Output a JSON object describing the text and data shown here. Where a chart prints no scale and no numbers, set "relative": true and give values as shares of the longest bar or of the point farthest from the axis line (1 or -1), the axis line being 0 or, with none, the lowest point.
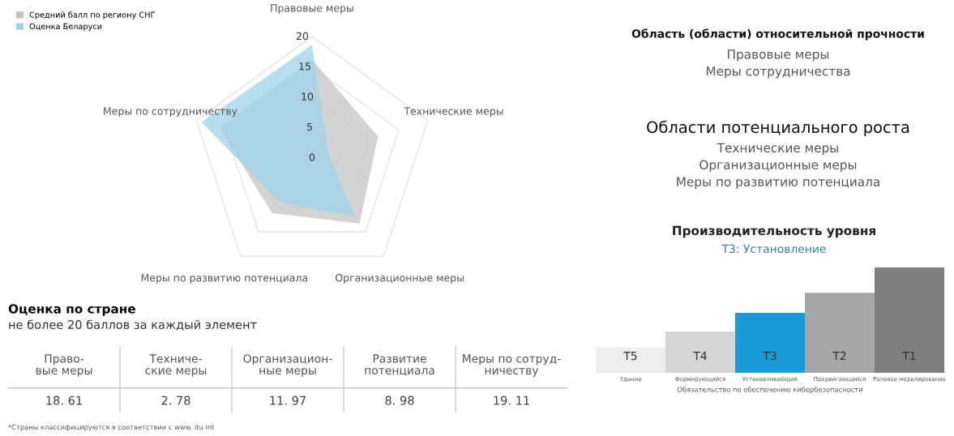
{
  "chart_data": [
    {
      "type": "radar",
      "categories": [
        "Правовые меры",
        "Технические меры",
        "Организационные меры",
        "Меры по развитию потенциала",
        "Меры по сотрудничеству"
      ],
      "ylim": [
        0,
        20
      ],
      "yticks": [
        0,
        5,
        10,
        15,
        20
      ],
      "grid": true,
      "legend": "top left",
      "series": [
        {
          "name": "Средний балл по региону СНГ",
          "color": "#c4c4c4",
          "values": [
            16.2,
            11.4,
            13.3,
            11.2,
            16.0
          ]
        },
        {
          "name": "Оценка Беларуси",
          "color": "#9fd3ea",
          "values": [
            18.61,
            2.78,
            11.97,
            8.98,
            19.11
          ]
        }
      ]
    },
    {
      "type": "other",
      "title": "Оценка по стране",
      "subtitle": "не более 20 баллов за каждый элемент",
      "categories": [
        "Право-\nвые меры",
        "Техниче-\nские меры",
        "Организацион-\nные меры",
        "Развитие\nпотенциала",
        "Меры по сотруд-\nничеству"
      ],
      "value_labels": [
        "18. 61",
        "2. 78",
        "11. 97",
        "8. 98",
        "19. 11"
      ],
      "annotations": [
        "*Страны классифицируются в соответствии с www. itu int"
      ]
    },
    {
      "type": "other",
      "title": "Область (области) относительной прочности",
      "annotations": [
        "Правовые меры",
        "Меры сотрудничества"
      ]
    },
    {
      "type": "other",
      "title": "Области потенциального роста",
      "annotations": [
        "Технические меры",
        "Организационные меры",
        "Меры по развитию потенциала"
      ]
    },
    {
      "type": "bar",
      "relative": true,
      "title": "Производительность уровня",
      "subtitle": "T3: Установление",
      "xlabel": "Обязательство по обеспечению кибербезопасности",
      "categories": [
        "Здание",
        "Формирующийся",
        "Устанавливающий",
        "Продвигающийся",
        "Ролевое моделирование"
      ],
      "values": [
        0.24,
        0.39,
        0.57,
        0.76,
        1
      ],
      "colors": [
        "#eeeeee",
        "#d6d6d6",
        "#1a9bd7",
        "#a6a6a6",
        "#7f7f7f"
      ],
      "annotations": [
        "T5",
        "T4",
        "T3",
        "T2",
        "T1"
      ]
    }
  ]
}
